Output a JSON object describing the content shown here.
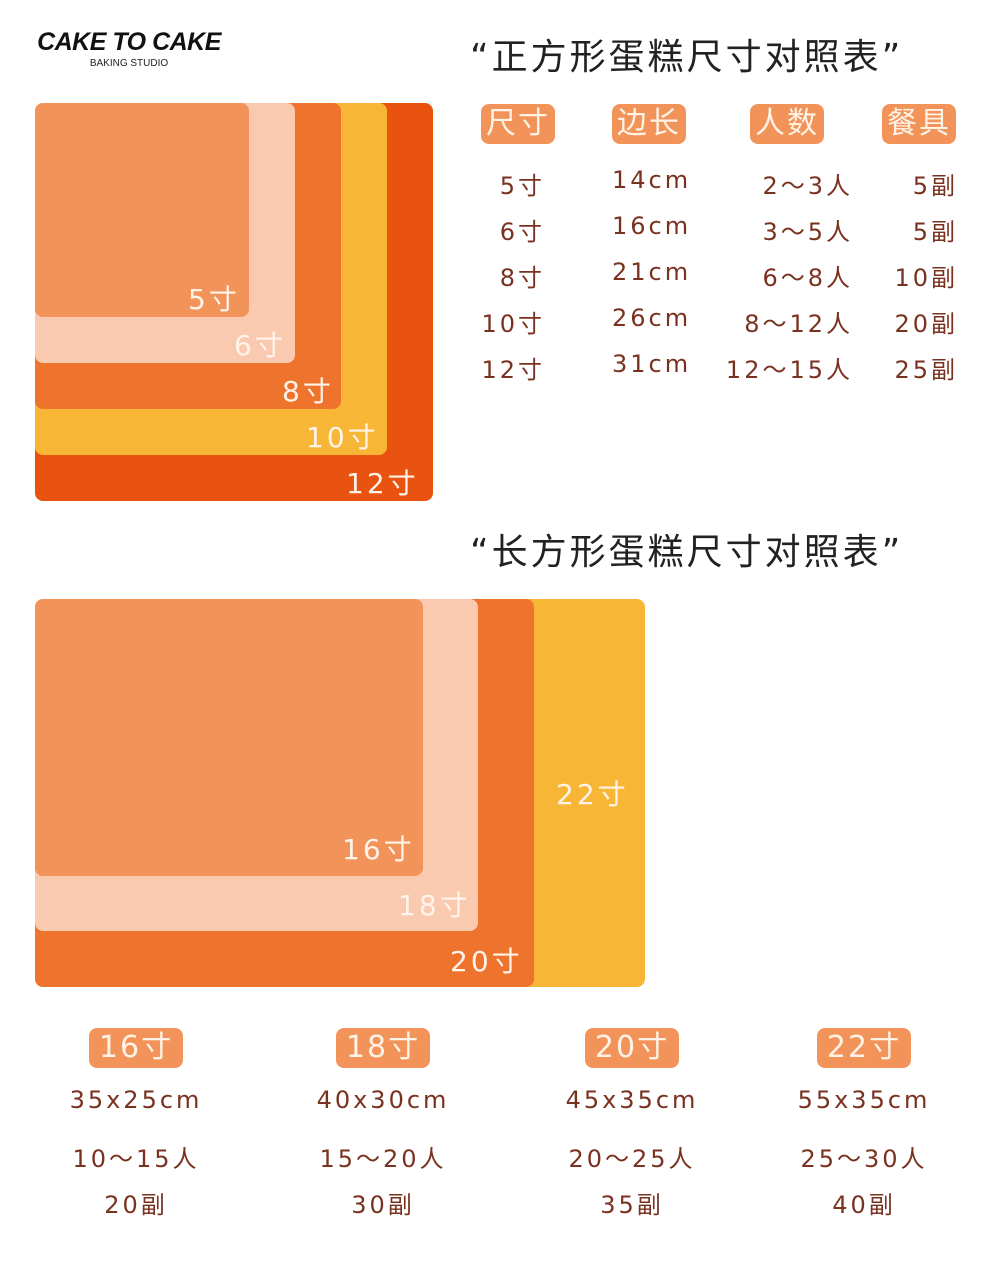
{
  "logo": {
    "name": "CAKE TO CAKE",
    "subtitle": "BAKING STUDIO"
  },
  "square": {
    "title": "“正方形蛋糕尺寸对照表”",
    "headers": [
      "尺寸",
      "边长",
      "人数",
      "餐具"
    ],
    "rows": [
      [
        "5寸",
        "14cm",
        "2～3人",
        "5副"
      ],
      [
        "6寸",
        "16cm",
        "3～5人",
        "5副"
      ],
      [
        "8寸",
        "21cm",
        "6～8人",
        "10副"
      ],
      [
        "10寸",
        "26cm",
        "8～12人",
        "20副"
      ],
      [
        "12寸",
        "31cm",
        "12～15人",
        "25副"
      ]
    ],
    "diagram_labels": [
      "5寸",
      "6寸",
      "8寸",
      "10寸",
      "12寸"
    ],
    "colors": {
      "5": "#f2935a",
      "6": "#f9c9b0",
      "8": "#ee732c",
      "10": "#f8b636",
      "12": "#e8530f"
    }
  },
  "rectangle": {
    "title": "“长方形蛋糕尺寸对照表”",
    "diagram_labels": [
      "16寸",
      "18寸",
      "20寸",
      "22寸"
    ],
    "colors": {
      "16": "#f2935a",
      "18": "#f9c9b0",
      "20": "#ee732c",
      "22": "#f8b636"
    },
    "items": [
      {
        "size": "16寸",
        "dimensions": "35x25cm",
        "people": "10～15人",
        "tableware": "20副"
      },
      {
        "size": "18寸",
        "dimensions": "40x30cm",
        "people": "15～20人",
        "tableware": "30副"
      },
      {
        "size": "20寸",
        "dimensions": "45x35cm",
        "people": "20～25人",
        "tableware": "35副"
      },
      {
        "size": "22寸",
        "dimensions": "55x35cm",
        "people": "25～30人",
        "tableware": "40副"
      }
    ]
  }
}
